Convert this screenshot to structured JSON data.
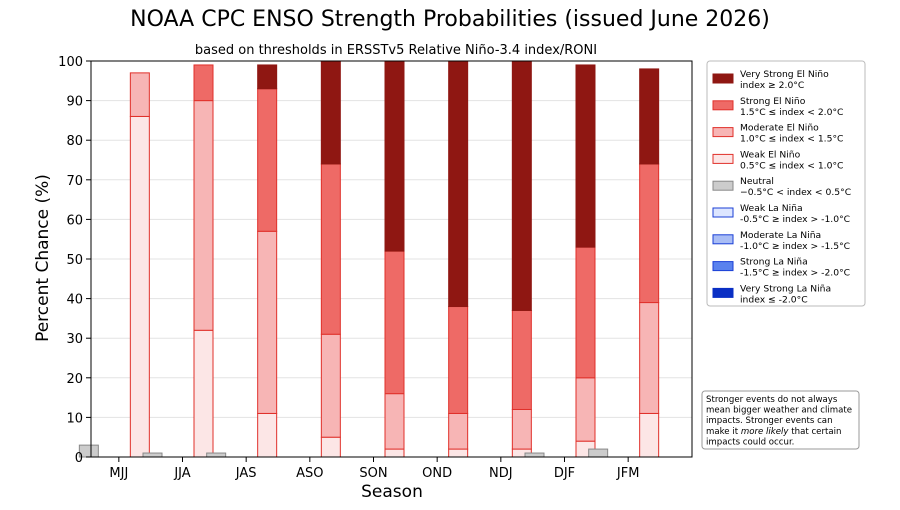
{
  "chart_data": {
    "type": "bar",
    "stacked": true,
    "title": "NOAA CPC ENSO Strength Probabilities (issued June 2026)",
    "subtitle": "based on thresholds in ERSSTv5 Relative Niño-3.4 index/RONI",
    "xlabel": "Season",
    "ylabel": "Percent Chance (%)",
    "ylim": [
      0,
      100
    ],
    "yticks": [
      0,
      10,
      20,
      30,
      40,
      50,
      60,
      70,
      80,
      90,
      100
    ],
    "grid": "horizontal",
    "legend_position": "right",
    "categories": [
      "MJJ",
      "JJA",
      "JAS",
      "ASO",
      "SON",
      "OND",
      "NDJ",
      "DJF",
      "JFM"
    ],
    "series": [
      {
        "key": "neutral",
        "label_line1": "Neutral",
        "label_line2": "−0.5°C < index < 0.5°C",
        "fill": "#cccccc",
        "edge": "#888888",
        "values": [
          3,
          1,
          1,
          0,
          0,
          0,
          0,
          1,
          2
        ]
      },
      {
        "key": "weak_lanina",
        "label_line1": "Weak La Niña",
        "label_line2": "-0.5°C ≥ index > -1.0°C",
        "fill": "#dde6ff",
        "edge": "#1a3fd6",
        "values": [
          0,
          0,
          0,
          0,
          0,
          0,
          0,
          0,
          0
        ]
      },
      {
        "key": "moderate_lanina",
        "label_line1": "Moderate La Niña",
        "label_line2": "-1.0°C ≥ index > -1.5°C",
        "fill": "#a9bdf5",
        "edge": "#1a3fd6",
        "values": [
          0,
          0,
          0,
          0,
          0,
          0,
          0,
          0,
          0
        ]
      },
      {
        "key": "strong_lanina",
        "label_line1": "Strong La Niña",
        "label_line2": "-1.5°C ≥ index > -2.0°C",
        "fill": "#5a82ee",
        "edge": "#1a3fd6",
        "values": [
          0,
          0,
          0,
          0,
          0,
          0,
          0,
          0,
          0
        ]
      },
      {
        "key": "very_strong_lanina",
        "label_line1": "Very Strong La Niña",
        "label_line2": "index ≤ -2.0°C",
        "fill": "#0a2fc4",
        "edge": "#0a2fc4",
        "values": [
          0,
          0,
          0,
          0,
          0,
          0,
          0,
          0,
          0
        ]
      },
      {
        "key": "weak_elnino",
        "label_line1": "Weak El Niño",
        "label_line2": "0.5°C ≤ index < 1.0°C",
        "fill": "#fce6e6",
        "edge": "#e0302a",
        "values": [
          86,
          32,
          11,
          5,
          2,
          2,
          2,
          4,
          11
        ]
      },
      {
        "key": "moderate_elnino",
        "label_line1": "Moderate El Niño",
        "label_line2": "1.0°C ≤ index < 1.5°C",
        "fill": "#f7b5b5",
        "edge": "#e0302a",
        "values": [
          11,
          58,
          46,
          26,
          14,
          9,
          10,
          16,
          28
        ]
      },
      {
        "key": "strong_elnino",
        "label_line1": "Strong El Niño",
        "label_line2": "1.5°C ≤ index < 2.0°C",
        "fill": "#ee6a66",
        "edge": "#e0302a",
        "values": [
          0,
          9,
          36,
          43,
          36,
          27,
          25,
          33,
          35
        ]
      },
      {
        "key": "very_strong_elnino",
        "label_line1": "Very Strong El Niño",
        "label_line2": "index ≥ 2.0°C",
        "fill": "#8f1712",
        "edge": "#8f1712",
        "values": [
          0,
          0,
          6,
          26,
          48,
          62,
          63,
          46,
          24
        ]
      }
    ],
    "legend_order": [
      "very_strong_elnino",
      "strong_elnino",
      "moderate_elnino",
      "weak_elnino",
      "neutral",
      "weak_lanina",
      "moderate_lanina",
      "strong_lanina",
      "very_strong_lanina"
    ],
    "note": {
      "lines": [
        [
          "Stronger events do not always"
        ],
        [
          "mean bigger weather and climate"
        ],
        [
          "impacts. Stronger events can"
        ],
        [
          "make it ",
          "more likely",
          " that certain"
        ],
        [
          "impacts could occur."
        ]
      ]
    }
  }
}
